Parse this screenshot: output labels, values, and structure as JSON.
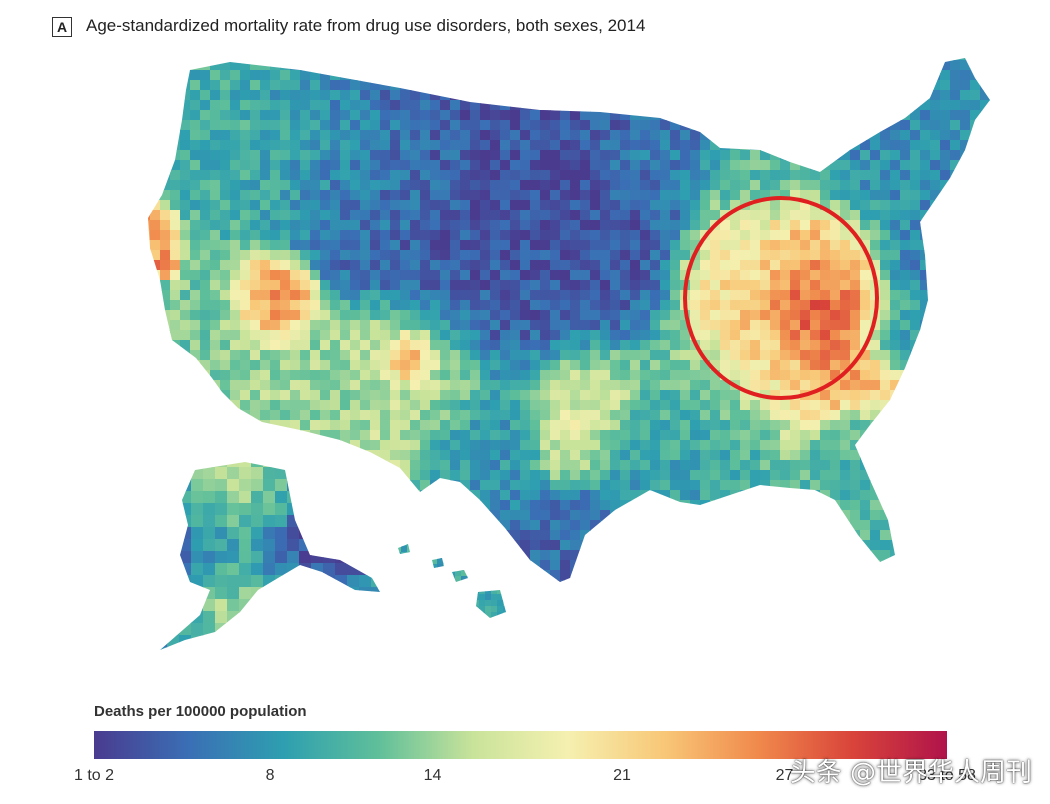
{
  "panel_label": "A",
  "title": "Age-standardized mortality rate from drug use disorders, both sexes, 2014",
  "legend": {
    "title": "Deaths per 100000 population",
    "ticks": [
      {
        "label": "1 to 2",
        "value": 1.5
      },
      {
        "label": "8",
        "value": 8
      },
      {
        "label": "14",
        "value": 14
      },
      {
        "label": "21",
        "value": 21
      },
      {
        "label": "27",
        "value": 27
      },
      {
        "label": "33 to 58",
        "value": 33
      }
    ],
    "range": [
      1.5,
      33
    ],
    "colors": [
      "#4a3b8f",
      "#3a6fb5",
      "#2e9fb0",
      "#5fbf9a",
      "#c9e39a",
      "#f5f0b0",
      "#f8c878",
      "#f08a4c",
      "#d9443a",
      "#b0134a"
    ]
  },
  "highlight": {
    "region": "Appalachia",
    "color": "#e02020"
  },
  "watermark": "头条 @世界华人周刊"
}
